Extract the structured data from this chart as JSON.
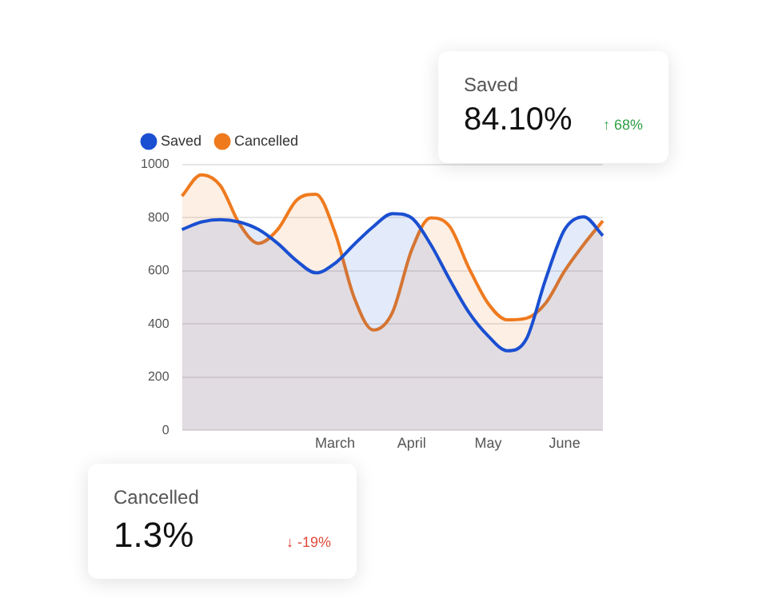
{
  "chart_data": [
    {
      "type": "area",
      "categories": [
        null,
        null,
        null,
        null,
        null,
        null,
        null,
        null,
        "March",
        null,
        null,
        null,
        "April",
        null,
        null,
        null,
        "May",
        null,
        null,
        null,
        "June",
        null,
        null
      ],
      "ylim": [
        0,
        1000
      ],
      "yticks": [
        0,
        200,
        400,
        600,
        800,
        1000
      ],
      "grid": "y",
      "legend": "top left",
      "marker": "none",
      "series": [
        {
          "name": "Saved",
          "color": "#1a4fd1",
          "values": [
            756,
            784,
            793,
            784,
            756,
            704,
            638,
            593,
            629,
            700,
            767,
            816,
            800,
            700,
            567,
            444,
            356,
            300,
            344,
            567,
            756,
            804,
            733
          ]
        },
        {
          "name": "Cancelled",
          "color": "#ef7a1e",
          "values": [
            882,
            962,
            922,
            778,
            704,
            756,
            867,
            889,
            744,
            500,
            378,
            444,
            678,
            800,
            767,
            611,
            478,
            416,
            422,
            478,
            600,
            700,
            789
          ]
        }
      ]
    },
    {
      "type": "other",
      "title": "Saved",
      "annotations": [
        "84.10%",
        "↑ 68%"
      ]
    },
    {
      "type": "other",
      "title": "Cancelled",
      "annotations": [
        "1.3%",
        "↓ -19%"
      ]
    }
  ]
}
